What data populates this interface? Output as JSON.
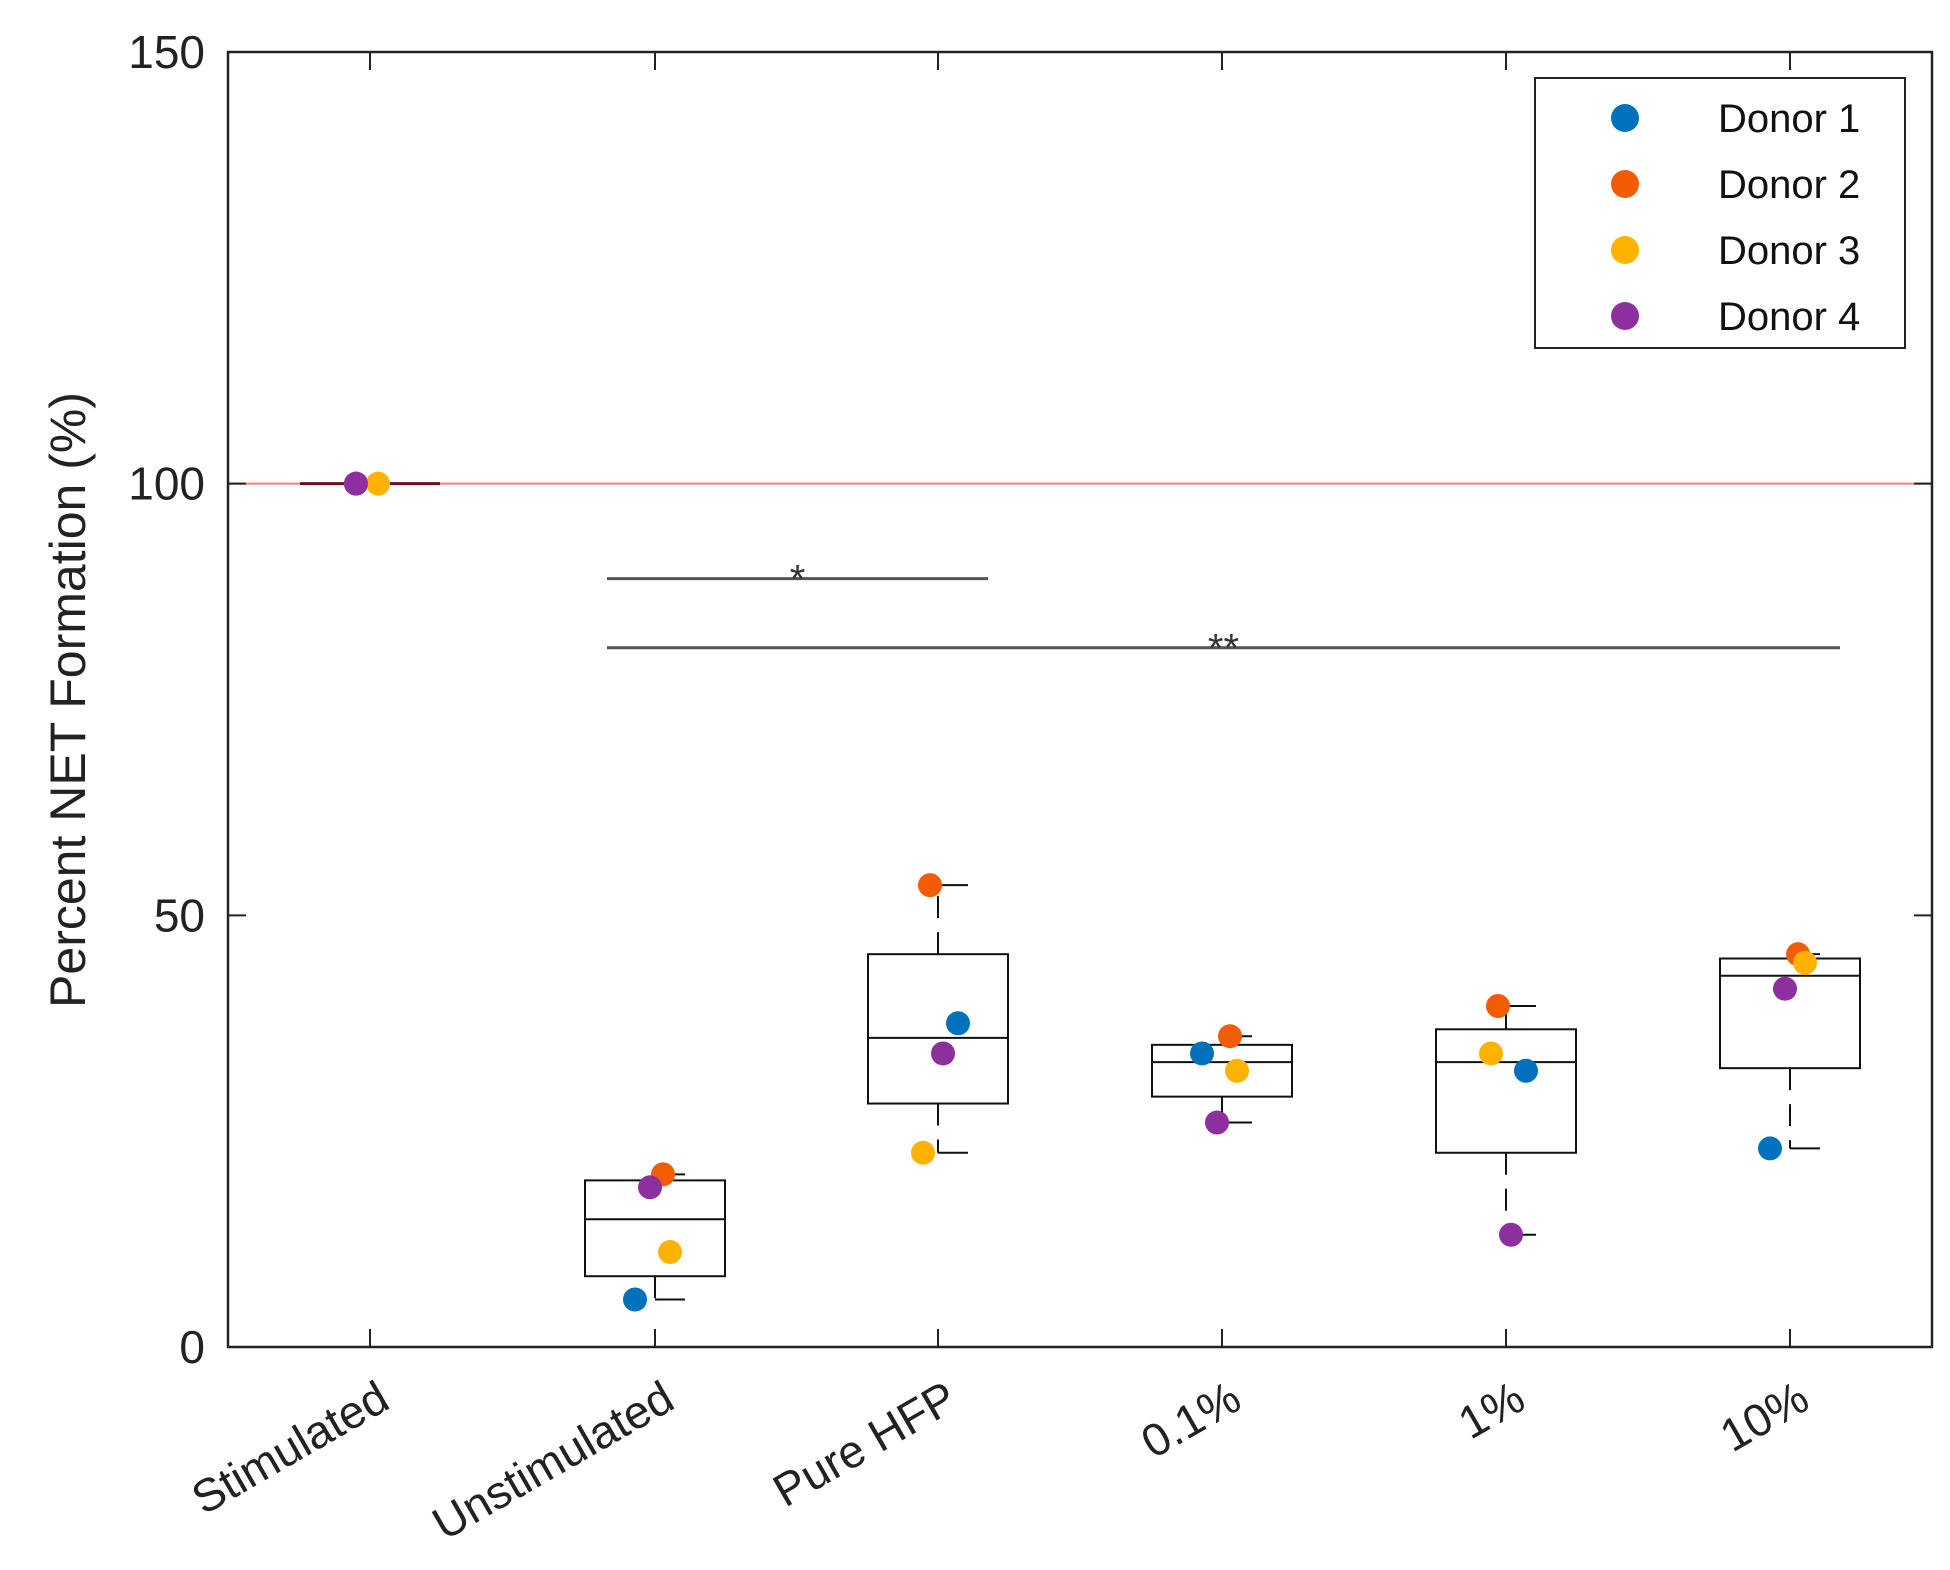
{
  "chart_data": {
    "type": "box-scatter",
    "title": "",
    "xlabel": "",
    "ylabel": "Percent NET Formation (%)",
    "ylim": [
      0,
      150
    ],
    "yticks": [
      0,
      50,
      100,
      150
    ],
    "categories": [
      "Stimulated",
      "Unstimulated",
      "Pure HFP",
      "0.1%",
      "1%",
      "10%"
    ],
    "reference_line": {
      "y": 100,
      "color": "#f08080"
    },
    "series": [
      {
        "name": "Donor 1",
        "color": "#0072BD",
        "values": [
          100,
          5.5,
          37.5,
          34,
          32,
          23
        ]
      },
      {
        "name": "Donor 2",
        "color": "#F25C05",
        "values": [
          100,
          20,
          53.5,
          36,
          39.5,
          45.5
        ]
      },
      {
        "name": "Donor 3",
        "color": "#FFB300",
        "values": [
          100,
          11,
          22.5,
          32,
          34,
          44.5
        ]
      },
      {
        "name": "Donor 4",
        "color": "#8E2F9F",
        "values": [
          100,
          18.5,
          34,
          26,
          13,
          41.5
        ]
      }
    ],
    "boxes": [
      {
        "category": "Stimulated",
        "whisker_low": 100,
        "q1": 100,
        "median": 100,
        "q3": 100,
        "whisker_high": 100
      },
      {
        "category": "Unstimulated",
        "whisker_low": 5.5,
        "q1": 8.2,
        "median": 14.8,
        "q3": 19.3,
        "whisker_high": 20
      },
      {
        "category": "Pure HFP",
        "whisker_low": 22.5,
        "q1": 28.2,
        "median": 35.8,
        "q3": 45.5,
        "whisker_high": 53.5
      },
      {
        "category": "0.1%",
        "whisker_low": 26,
        "q1": 29,
        "median": 33,
        "q3": 35,
        "whisker_high": 36
      },
      {
        "category": "1%",
        "whisker_low": 13,
        "q1": 22.5,
        "median": 33,
        "q3": 36.8,
        "whisker_high": 39.5
      },
      {
        "category": "10%",
        "whisker_low": 23,
        "q1": 32.3,
        "median": 43,
        "q3": 45,
        "whisker_high": 45.5
      }
    ],
    "significance": [
      {
        "from": "Unstimulated",
        "to": "Pure HFP",
        "y": 89,
        "label": "*"
      },
      {
        "from": "Unstimulated",
        "to": "10%",
        "y": 81,
        "label": "**"
      }
    ],
    "grid": false,
    "legend_position": "top-right"
  }
}
